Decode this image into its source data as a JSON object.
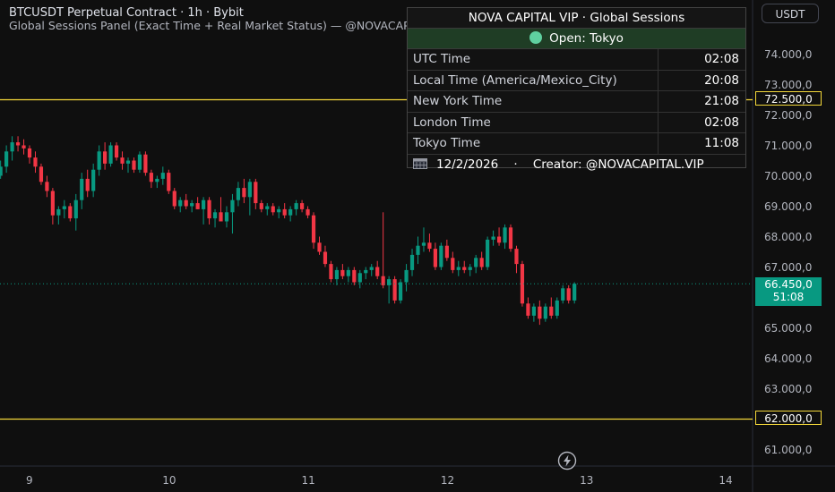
{
  "header": {
    "title": "BTCUSDT Perpetual Contract · 1h · Bybit",
    "subtitle": "Global Sessions Panel (Exact Time + Real Market Status) — @NOVACAPITAL.VIP"
  },
  "currency_button": "USDT",
  "panel": {
    "title": "NOVA CAPITAL VIP · Global Sessions",
    "status": "Open: Tokyo",
    "rows": [
      {
        "label": "UTC Time",
        "value": "02:08"
      },
      {
        "label": "Local Time (America/Mexico_City)",
        "value": "20:08"
      },
      {
        "label": "New York Time",
        "value": "21:08"
      },
      {
        "label": "London Time",
        "value": "02:08"
      },
      {
        "label": "Tokyo Time",
        "value": "11:08"
      }
    ],
    "footer_date": "12/2/2026",
    "footer_sep": "·",
    "footer_creator": "Creator: @NOVACAPITAL.VIP",
    "colors": {
      "status_bg": "#1f3d25",
      "status_dot": "#5fd0a0"
    }
  },
  "labels": {
    "level_high": "72.500,0",
    "level_low": "62.000,0",
    "last_price": "66.450,0",
    "countdown": "51:08"
  },
  "colors": {
    "up": "#089981",
    "down": "#f23645",
    "level_line": "#f5d93a",
    "background": "#0f0f0f"
  },
  "chart_data": {
    "type": "candlestick",
    "y_ticks": [
      "74.000,0",
      "73.000,0",
      "72.000,0",
      "71.000,0",
      "70.000,0",
      "69.000,0",
      "68.000,0",
      "67.000,0",
      "66.000,0",
      "65.000,0",
      "64.000,0",
      "63.000,0",
      "62.000,0",
      "61.000,0"
    ],
    "y_tick_values": [
      74000,
      73000,
      72000,
      71000,
      70000,
      69000,
      68000,
      67000,
      66000,
      65000,
      64000,
      63000,
      62000,
      61000
    ],
    "ylim": [
      60500,
      75000
    ],
    "x_ticks": [
      {
        "label": "9",
        "pos": 0
      },
      {
        "label": "10",
        "pos": 24
      },
      {
        "label": "11",
        "pos": 48
      },
      {
        "label": "12",
        "pos": 72
      },
      {
        "label": "13",
        "pos": 96
      },
      {
        "label": "14",
        "pos": 120
      }
    ],
    "x_unit": "hours from Feb 9 00:00",
    "horizontal_levels": [
      72500,
      62000
    ],
    "last_price": 66450,
    "candles": [
      {
        "t": -5,
        "o": 70000,
        "h": 70500,
        "l": 69900,
        "c": 70300
      },
      {
        "t": -4,
        "o": 70300,
        "h": 71000,
        "l": 70100,
        "c": 70800
      },
      {
        "t": -3,
        "o": 70800,
        "h": 71300,
        "l": 70500,
        "c": 71100
      },
      {
        "t": -2,
        "o": 71100,
        "h": 71300,
        "l": 70800,
        "c": 71000
      },
      {
        "t": -1,
        "o": 71000,
        "h": 71200,
        "l": 70700,
        "c": 70900
      },
      {
        "t": 0,
        "o": 70900,
        "h": 71000,
        "l": 70400,
        "c": 70600
      },
      {
        "t": 1,
        "o": 70600,
        "h": 70800,
        "l": 70100,
        "c": 70300
      },
      {
        "t": 2,
        "o": 70300,
        "h": 70400,
        "l": 69700,
        "c": 69800
      },
      {
        "t": 3,
        "o": 69800,
        "h": 70000,
        "l": 69300,
        "c": 69500
      },
      {
        "t": 4,
        "o": 69500,
        "h": 69600,
        "l": 68400,
        "c": 68700
      },
      {
        "t": 5,
        "o": 68700,
        "h": 69000,
        "l": 68400,
        "c": 68900
      },
      {
        "t": 6,
        "o": 68900,
        "h": 69200,
        "l": 68600,
        "c": 69000
      },
      {
        "t": 7,
        "o": 69000,
        "h": 69100,
        "l": 68500,
        "c": 68600
      },
      {
        "t": 8,
        "o": 68600,
        "h": 69400,
        "l": 68200,
        "c": 69200
      },
      {
        "t": 9,
        "o": 69200,
        "h": 70100,
        "l": 68900,
        "c": 69900
      },
      {
        "t": 10,
        "o": 69900,
        "h": 70200,
        "l": 69300,
        "c": 69500
      },
      {
        "t": 11,
        "o": 69500,
        "h": 70400,
        "l": 69300,
        "c": 70200
      },
      {
        "t": 12,
        "o": 70200,
        "h": 71000,
        "l": 70000,
        "c": 70800
      },
      {
        "t": 13,
        "o": 70800,
        "h": 71100,
        "l": 70200,
        "c": 70400
      },
      {
        "t": 14,
        "o": 70400,
        "h": 71100,
        "l": 70300,
        "c": 71000
      },
      {
        "t": 15,
        "o": 71000,
        "h": 71100,
        "l": 70500,
        "c": 70600
      },
      {
        "t": 16,
        "o": 70600,
        "h": 70800,
        "l": 70200,
        "c": 70400
      },
      {
        "t": 17,
        "o": 70400,
        "h": 70600,
        "l": 70100,
        "c": 70500
      },
      {
        "t": 18,
        "o": 70500,
        "h": 70600,
        "l": 70100,
        "c": 70200
      },
      {
        "t": 19,
        "o": 70200,
        "h": 70800,
        "l": 70100,
        "c": 70700
      },
      {
        "t": 20,
        "o": 70700,
        "h": 70800,
        "l": 70000,
        "c": 70100
      },
      {
        "t": 21,
        "o": 70100,
        "h": 70200,
        "l": 69600,
        "c": 69800
      },
      {
        "t": 22,
        "o": 69800,
        "h": 70000,
        "l": 69600,
        "c": 69900
      },
      {
        "t": 23,
        "o": 69900,
        "h": 70300,
        "l": 69700,
        "c": 70100
      },
      {
        "t": 24,
        "o": 70100,
        "h": 70200,
        "l": 69400,
        "c": 69500
      },
      {
        "t": 25,
        "o": 69500,
        "h": 69600,
        "l": 68900,
        "c": 69000
      },
      {
        "t": 26,
        "o": 69000,
        "h": 69300,
        "l": 68800,
        "c": 69200
      },
      {
        "t": 27,
        "o": 69200,
        "h": 69400,
        "l": 68900,
        "c": 69000
      },
      {
        "t": 28,
        "o": 69000,
        "h": 69200,
        "l": 68800,
        "c": 69100
      },
      {
        "t": 29,
        "o": 69100,
        "h": 69300,
        "l": 68900,
        "c": 68900
      },
      {
        "t": 30,
        "o": 68900,
        "h": 69300,
        "l": 68400,
        "c": 69200
      },
      {
        "t": 31,
        "o": 69200,
        "h": 69300,
        "l": 68400,
        "c": 68600
      },
      {
        "t": 32,
        "o": 68600,
        "h": 68900,
        "l": 68300,
        "c": 68800
      },
      {
        "t": 33,
        "o": 68800,
        "h": 69300,
        "l": 68500,
        "c": 68500
      },
      {
        "t": 34,
        "o": 68500,
        "h": 69000,
        "l": 68300,
        "c": 68800
      },
      {
        "t": 35,
        "o": 68800,
        "h": 69400,
        "l": 68100,
        "c": 69200
      },
      {
        "t": 36,
        "o": 69200,
        "h": 69800,
        "l": 69000,
        "c": 69600
      },
      {
        "t": 37,
        "o": 69600,
        "h": 69900,
        "l": 69100,
        "c": 69300
      },
      {
        "t": 38,
        "o": 69300,
        "h": 69900,
        "l": 68700,
        "c": 69800
      },
      {
        "t": 39,
        "o": 69800,
        "h": 69900,
        "l": 68900,
        "c": 69100
      },
      {
        "t": 40,
        "o": 69100,
        "h": 69200,
        "l": 68800,
        "c": 68900
      },
      {
        "t": 41,
        "o": 68900,
        "h": 69100,
        "l": 68700,
        "c": 69000
      },
      {
        "t": 42,
        "o": 69000,
        "h": 69100,
        "l": 68700,
        "c": 68800
      },
      {
        "t": 43,
        "o": 68800,
        "h": 69000,
        "l": 68600,
        "c": 68900
      },
      {
        "t": 44,
        "o": 68900,
        "h": 69100,
        "l": 68600,
        "c": 68700
      },
      {
        "t": 45,
        "o": 68700,
        "h": 69000,
        "l": 68500,
        "c": 68900
      },
      {
        "t": 46,
        "o": 68900,
        "h": 69200,
        "l": 68700,
        "c": 69100
      },
      {
        "t": 47,
        "o": 69100,
        "h": 69200,
        "l": 68800,
        "c": 68900
      },
      {
        "t": 48,
        "o": 68900,
        "h": 69000,
        "l": 68600,
        "c": 68700
      },
      {
        "t": 49,
        "o": 68700,
        "h": 68800,
        "l": 67600,
        "c": 67800
      },
      {
        "t": 50,
        "o": 67800,
        "h": 68000,
        "l": 67400,
        "c": 67500
      },
      {
        "t": 51,
        "o": 67500,
        "h": 67700,
        "l": 67000,
        "c": 67100
      },
      {
        "t": 52,
        "o": 67100,
        "h": 67200,
        "l": 66500,
        "c": 66600
      },
      {
        "t": 53,
        "o": 66600,
        "h": 67000,
        "l": 66400,
        "c": 66900
      },
      {
        "t": 54,
        "o": 66900,
        "h": 67100,
        "l": 66600,
        "c": 66700
      },
      {
        "t": 55,
        "o": 66700,
        "h": 67000,
        "l": 66500,
        "c": 66900
      },
      {
        "t": 56,
        "o": 66900,
        "h": 67000,
        "l": 66400,
        "c": 66500
      },
      {
        "t": 57,
        "o": 66500,
        "h": 66900,
        "l": 66300,
        "c": 66800
      },
      {
        "t": 58,
        "o": 66800,
        "h": 67000,
        "l": 66600,
        "c": 66900
      },
      {
        "t": 59,
        "o": 66900,
        "h": 67100,
        "l": 66700,
        "c": 67000
      },
      {
        "t": 60,
        "o": 67000,
        "h": 67200,
        "l": 66600,
        "c": 66700
      },
      {
        "t": 61,
        "o": 66700,
        "h": 68800,
        "l": 66300,
        "c": 66400
      },
      {
        "t": 62,
        "o": 66400,
        "h": 66700,
        "l": 65800,
        "c": 66600
      },
      {
        "t": 63,
        "o": 66600,
        "h": 66700,
        "l": 65800,
        "c": 65900
      },
      {
        "t": 64,
        "o": 65900,
        "h": 66600,
        "l": 65800,
        "c": 66500
      },
      {
        "t": 65,
        "o": 66500,
        "h": 67100,
        "l": 66200,
        "c": 66900
      },
      {
        "t": 66,
        "o": 66900,
        "h": 67600,
        "l": 66700,
        "c": 67400
      },
      {
        "t": 67,
        "o": 67400,
        "h": 68000,
        "l": 67100,
        "c": 67700
      },
      {
        "t": 68,
        "o": 67700,
        "h": 68300,
        "l": 67500,
        "c": 67800
      },
      {
        "t": 69,
        "o": 67800,
        "h": 68100,
        "l": 67500,
        "c": 67600
      },
      {
        "t": 70,
        "o": 67600,
        "h": 67800,
        "l": 66900,
        "c": 67000
      },
      {
        "t": 71,
        "o": 67000,
        "h": 67800,
        "l": 66900,
        "c": 67700
      },
      {
        "t": 72,
        "o": 67700,
        "h": 67900,
        "l": 67200,
        "c": 67300
      },
      {
        "t": 73,
        "o": 67300,
        "h": 67500,
        "l": 66800,
        "c": 66900
      },
      {
        "t": 74,
        "o": 66900,
        "h": 67200,
        "l": 66700,
        "c": 67000
      },
      {
        "t": 75,
        "o": 67000,
        "h": 67200,
        "l": 66800,
        "c": 66900
      },
      {
        "t": 76,
        "o": 66900,
        "h": 67100,
        "l": 66700,
        "c": 67000
      },
      {
        "t": 77,
        "o": 67000,
        "h": 67400,
        "l": 66800,
        "c": 67300
      },
      {
        "t": 78,
        "o": 67300,
        "h": 67500,
        "l": 66900,
        "c": 67000
      },
      {
        "t": 79,
        "o": 67000,
        "h": 68000,
        "l": 66900,
        "c": 67900
      },
      {
        "t": 80,
        "o": 67900,
        "h": 68200,
        "l": 67700,
        "c": 68000
      },
      {
        "t": 81,
        "o": 68000,
        "h": 68300,
        "l": 67700,
        "c": 67800
      },
      {
        "t": 82,
        "o": 67800,
        "h": 68400,
        "l": 67600,
        "c": 68300
      },
      {
        "t": 83,
        "o": 68300,
        "h": 68400,
        "l": 67500,
        "c": 67600
      },
      {
        "t": 84,
        "o": 67600,
        "h": 67700,
        "l": 66800,
        "c": 67100
      },
      {
        "t": 85,
        "o": 67100,
        "h": 67200,
        "l": 65700,
        "c": 65800
      },
      {
        "t": 86,
        "o": 65800,
        "h": 66000,
        "l": 65300,
        "c": 65400
      },
      {
        "t": 87,
        "o": 65400,
        "h": 65800,
        "l": 65200,
        "c": 65700
      },
      {
        "t": 88,
        "o": 65700,
        "h": 65900,
        "l": 65100,
        "c": 65300
      },
      {
        "t": 89,
        "o": 65300,
        "h": 65800,
        "l": 65200,
        "c": 65700
      },
      {
        "t": 90,
        "o": 65700,
        "h": 66000,
        "l": 65300,
        "c": 65400
      },
      {
        "t": 91,
        "o": 65400,
        "h": 66000,
        "l": 65300,
        "c": 65900
      },
      {
        "t": 92,
        "o": 65900,
        "h": 66400,
        "l": 65800,
        "c": 66300
      },
      {
        "t": 93,
        "o": 66300,
        "h": 66400,
        "l": 65800,
        "c": 65900
      },
      {
        "t": 94,
        "o": 65900,
        "h": 66500,
        "l": 65800,
        "c": 66450
      }
    ]
  }
}
